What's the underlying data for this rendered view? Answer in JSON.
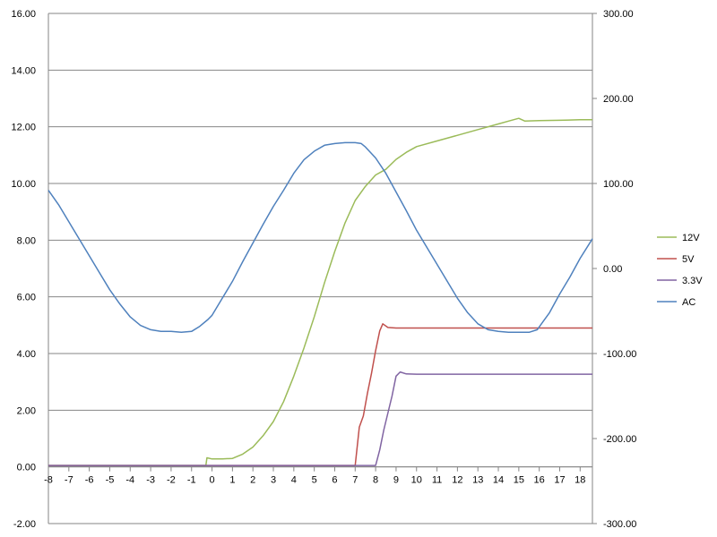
{
  "chart_data": {
    "type": "line",
    "title": "",
    "xlabel": "",
    "ylabel": "",
    "y2label": "",
    "grid": true,
    "legend_position": "right",
    "x_range": [
      -8,
      18.6
    ],
    "x_ticks": [
      -8,
      -7,
      -6,
      -5,
      -4,
      -3,
      -2,
      -1,
      0,
      1,
      2,
      3,
      4,
      5,
      6,
      7,
      8,
      9,
      10,
      11,
      12,
      13,
      14,
      15,
      16,
      17,
      18
    ],
    "y_left": {
      "range": [
        -2,
        16
      ],
      "ticks": [
        -2,
        0,
        2,
        4,
        6,
        8,
        10,
        12,
        14,
        16
      ],
      "tick_labels": [
        "-2.00",
        "0.00",
        "2.00",
        "4.00",
        "6.00",
        "8.00",
        "10.00",
        "12.00",
        "14.00",
        "16.00"
      ]
    },
    "y_right": {
      "range": [
        -300,
        300
      ],
      "ticks": [
        -300,
        -200,
        -100,
        0,
        100,
        200,
        300
      ],
      "tick_labels": [
        "-300.00",
        "-200.00",
        "-100.00",
        "0.00",
        "100.00",
        "200.00",
        "300.00"
      ]
    },
    "series": [
      {
        "name": "12V",
        "color": "#9bbb59",
        "axis": "left",
        "points": [
          [
            -8,
            0.05
          ],
          [
            -0.3,
            0.05
          ],
          [
            -0.25,
            0.32
          ],
          [
            0,
            0.28
          ],
          [
            0.5,
            0.28
          ],
          [
            1,
            0.3
          ],
          [
            1.5,
            0.45
          ],
          [
            2,
            0.7
          ],
          [
            2.5,
            1.1
          ],
          [
            3,
            1.6
          ],
          [
            3.5,
            2.3
          ],
          [
            4,
            3.2
          ],
          [
            4.5,
            4.2
          ],
          [
            5,
            5.3
          ],
          [
            5.5,
            6.5
          ],
          [
            6,
            7.6
          ],
          [
            6.5,
            8.6
          ],
          [
            7,
            9.4
          ],
          [
            7.5,
            9.9
          ],
          [
            8,
            10.3
          ],
          [
            8.5,
            10.5
          ],
          [
            9,
            10.85
          ],
          [
            9.5,
            11.1
          ],
          [
            10,
            11.3
          ],
          [
            11,
            11.5
          ],
          [
            12,
            11.7
          ],
          [
            13,
            11.9
          ],
          [
            14,
            12.1
          ],
          [
            14.5,
            12.2
          ],
          [
            15,
            12.3
          ],
          [
            15.3,
            12.2
          ],
          [
            16,
            12.22
          ],
          [
            17,
            12.23
          ],
          [
            18,
            12.25
          ],
          [
            18.6,
            12.25
          ]
        ]
      },
      {
        "name": "5V",
        "color": "#c0504d",
        "axis": "left",
        "points": [
          [
            -8,
            0.05
          ],
          [
            7.0,
            0.05
          ],
          [
            7.2,
            1.4
          ],
          [
            7.4,
            1.8
          ],
          [
            7.6,
            2.6
          ],
          [
            7.8,
            3.3
          ],
          [
            8.0,
            4.1
          ],
          [
            8.2,
            4.8
          ],
          [
            8.35,
            5.05
          ],
          [
            8.6,
            4.92
          ],
          [
            9,
            4.9
          ],
          [
            10,
            4.9
          ],
          [
            12,
            4.9
          ],
          [
            14,
            4.9
          ],
          [
            16,
            4.9
          ],
          [
            18,
            4.9
          ],
          [
            18.6,
            4.9
          ]
        ]
      },
      {
        "name": "3.3V",
        "color": "#8064a2",
        "axis": "left",
        "points": [
          [
            -8,
            0.05
          ],
          [
            8.0,
            0.05
          ],
          [
            8.2,
            0.6
          ],
          [
            8.4,
            1.3
          ],
          [
            8.6,
            1.9
          ],
          [
            8.8,
            2.5
          ],
          [
            9.0,
            3.2
          ],
          [
            9.2,
            3.35
          ],
          [
            9.5,
            3.28
          ],
          [
            10,
            3.27
          ],
          [
            12,
            3.27
          ],
          [
            14,
            3.27
          ],
          [
            16,
            3.27
          ],
          [
            18,
            3.27
          ],
          [
            18.6,
            3.27
          ]
        ]
      },
      {
        "name": "AC",
        "color": "#4f81bd",
        "axis": "right",
        "points": [
          [
            -8,
            92
          ],
          [
            -7.5,
            75
          ],
          [
            -7,
            55
          ],
          [
            -6.5,
            35
          ],
          [
            -6,
            15
          ],
          [
            -5.5,
            -5
          ],
          [
            -5,
            -25
          ],
          [
            -4.5,
            -42
          ],
          [
            -4,
            -57
          ],
          [
            -3.5,
            -67
          ],
          [
            -3,
            -72
          ],
          [
            -2.5,
            -74
          ],
          [
            -2,
            -74
          ],
          [
            -1.5,
            -75
          ],
          [
            -1,
            -74
          ],
          [
            -0.6,
            -68
          ],
          [
            -0.2,
            -60
          ],
          [
            0,
            -55
          ],
          [
            0.5,
            -35
          ],
          [
            1,
            -15
          ],
          [
            1.5,
            8
          ],
          [
            2,
            30
          ],
          [
            2.5,
            52
          ],
          [
            3,
            73
          ],
          [
            3.5,
            92
          ],
          [
            4,
            112
          ],
          [
            4.5,
            128
          ],
          [
            5,
            138
          ],
          [
            5.5,
            145
          ],
          [
            6,
            147
          ],
          [
            6.5,
            148
          ],
          [
            7,
            148
          ],
          [
            7.3,
            147
          ],
          [
            7.5,
            143
          ],
          [
            8,
            130
          ],
          [
            8.5,
            112
          ],
          [
            9,
            90
          ],
          [
            9.5,
            68
          ],
          [
            10,
            45
          ],
          [
            10.5,
            25
          ],
          [
            11,
            5
          ],
          [
            11.5,
            -15
          ],
          [
            12,
            -35
          ],
          [
            12.5,
            -52
          ],
          [
            13,
            -65
          ],
          [
            13.5,
            -72
          ],
          [
            14,
            -74
          ],
          [
            14.5,
            -75
          ],
          [
            15,
            -75
          ],
          [
            15.5,
            -75
          ],
          [
            15.9,
            -72
          ],
          [
            16.2,
            -62
          ],
          [
            16.5,
            -52
          ],
          [
            17,
            -30
          ],
          [
            17.5,
            -10
          ],
          [
            18,
            12
          ],
          [
            18.6,
            35
          ]
        ]
      }
    ]
  }
}
